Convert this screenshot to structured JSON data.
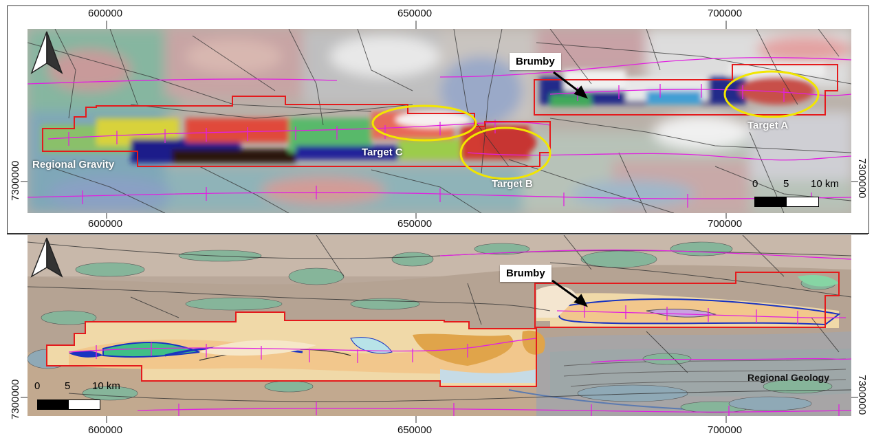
{
  "top_panel": {
    "title_label": "Regional Gravity",
    "callout": "Brumby",
    "targets": [
      {
        "name": "Target A"
      },
      {
        "name": "Target B"
      },
      {
        "name": "Target C"
      }
    ],
    "x_ticks_top": [
      "600000",
      "650000",
      "700000"
    ],
    "x_ticks_bottom": [
      "600000",
      "650000",
      "700000"
    ],
    "y_ticks": [
      "7300000"
    ],
    "scale_bar": {
      "labels": [
        "0",
        "5",
        "10 km"
      ]
    }
  },
  "bottom_panel": {
    "title_label": "Regional Geology",
    "callout": "Brumby",
    "x_ticks_bottom": [
      "600000",
      "650000",
      "700000"
    ],
    "y_ticks": [
      "7300000"
    ],
    "scale_bar": {
      "labels": [
        "0",
        "5",
        "10 km"
      ]
    }
  },
  "colors": {
    "tenement_outline": "#e41a1c",
    "target_ellipse": "#f2e600",
    "fold_axis": "#e020e0"
  },
  "icons": [
    "north-arrow-icon"
  ]
}
